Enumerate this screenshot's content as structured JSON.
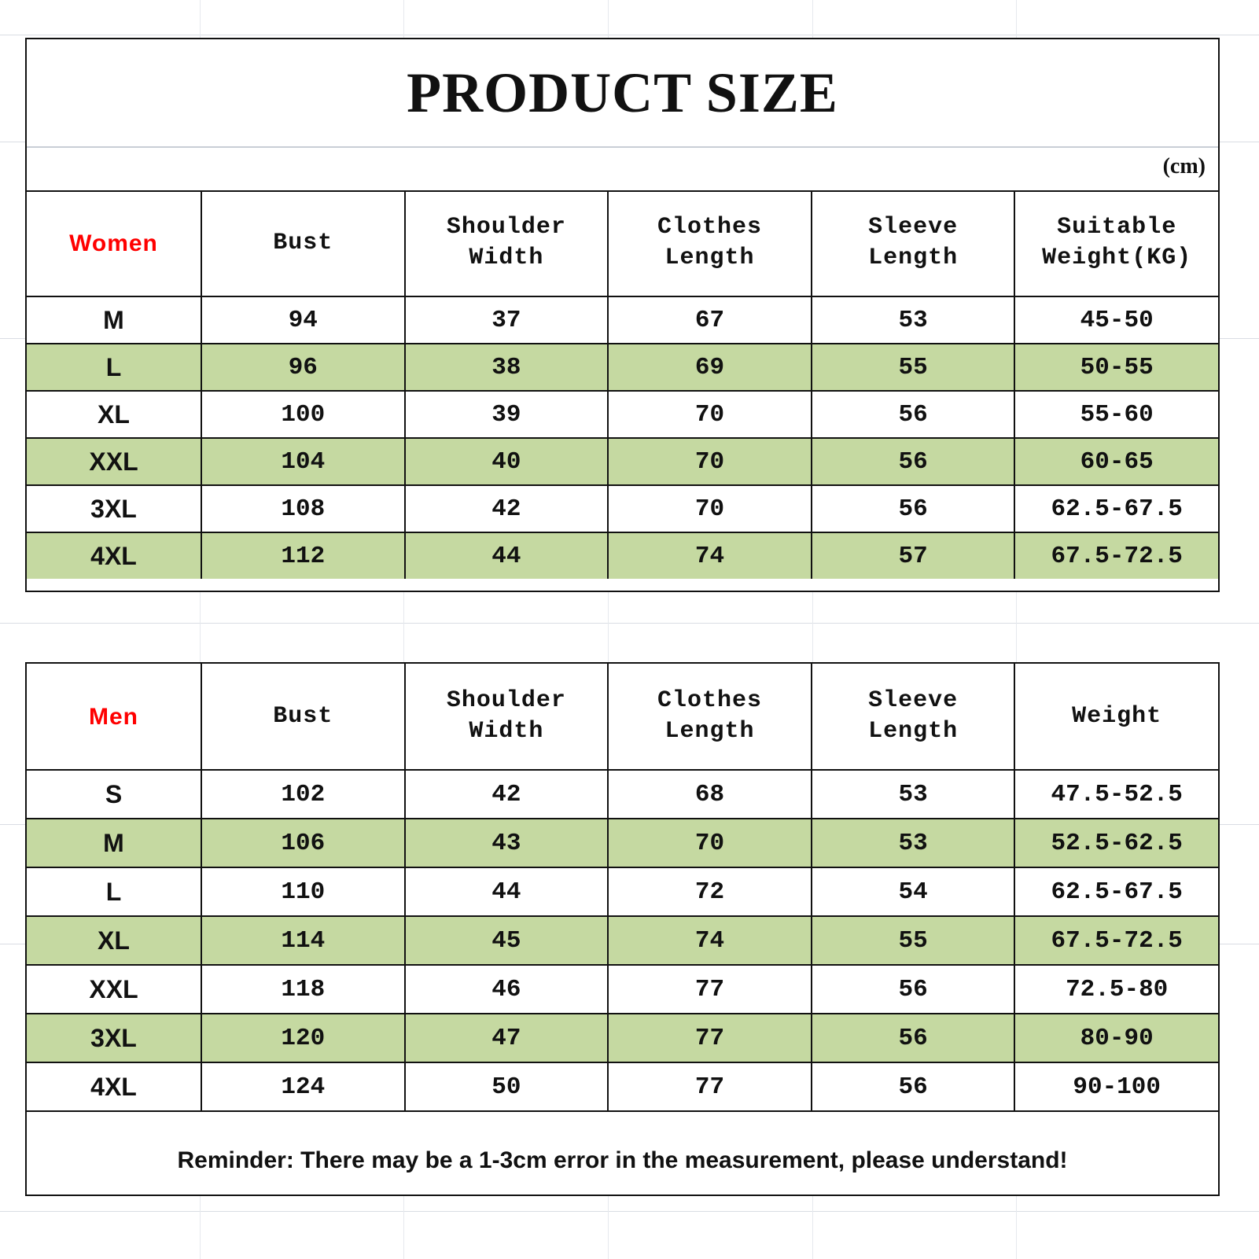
{
  "title": "PRODUCT SIZE",
  "unit": "(cm)",
  "women": {
    "label": "Women",
    "headers": [
      "Bust",
      "Shoulder\nWidth",
      "Clothes\nLength",
      "Sleeve\nLength",
      "Suitable\nWeight(KG)"
    ],
    "rows": [
      {
        "size": "M",
        "values": [
          "94",
          "37",
          "67",
          "53",
          "45-50"
        ]
      },
      {
        "size": "L",
        "values": [
          "96",
          "38",
          "69",
          "55",
          "50-55"
        ]
      },
      {
        "size": "XL",
        "values": [
          "100",
          "39",
          "70",
          "56",
          "55-60"
        ]
      },
      {
        "size": "XXL",
        "values": [
          "104",
          "40",
          "70",
          "56",
          "60-65"
        ]
      },
      {
        "size": "3XL",
        "values": [
          "108",
          "42",
          "70",
          "56",
          "62.5-67.5"
        ]
      },
      {
        "size": "4XL",
        "values": [
          "112",
          "44",
          "74",
          "57",
          "67.5-72.5"
        ]
      }
    ]
  },
  "men": {
    "label": "Men",
    "headers": [
      "Bust",
      "Shoulder\nWidth",
      "Clothes\nLength",
      "Sleeve\nLength",
      "Weight"
    ],
    "rows": [
      {
        "size": "S",
        "values": [
          "102",
          "42",
          "68",
          "53",
          "47.5-52.5"
        ]
      },
      {
        "size": "M",
        "values": [
          "106",
          "43",
          "70",
          "53",
          "52.5-62.5"
        ]
      },
      {
        "size": "L",
        "values": [
          "110",
          "44",
          "72",
          "54",
          "62.5-67.5"
        ]
      },
      {
        "size": "XL",
        "values": [
          "114",
          "45",
          "74",
          "55",
          "67.5-72.5"
        ]
      },
      {
        "size": "XXL",
        "values": [
          "118",
          "46",
          "77",
          "56",
          "72.5-80"
        ]
      },
      {
        "size": "3XL",
        "values": [
          "120",
          "47",
          "77",
          "56",
          "80-90"
        ]
      },
      {
        "size": "4XL",
        "values": [
          "124",
          "50",
          "77",
          "56",
          "90-100"
        ]
      }
    ]
  },
  "reminder": "Reminder: There may be a 1-3cm error in the measurement, please understand!",
  "colors": {
    "stripe": "#c5d9a1",
    "group_label": "#ff0000",
    "border": "#111111"
  }
}
